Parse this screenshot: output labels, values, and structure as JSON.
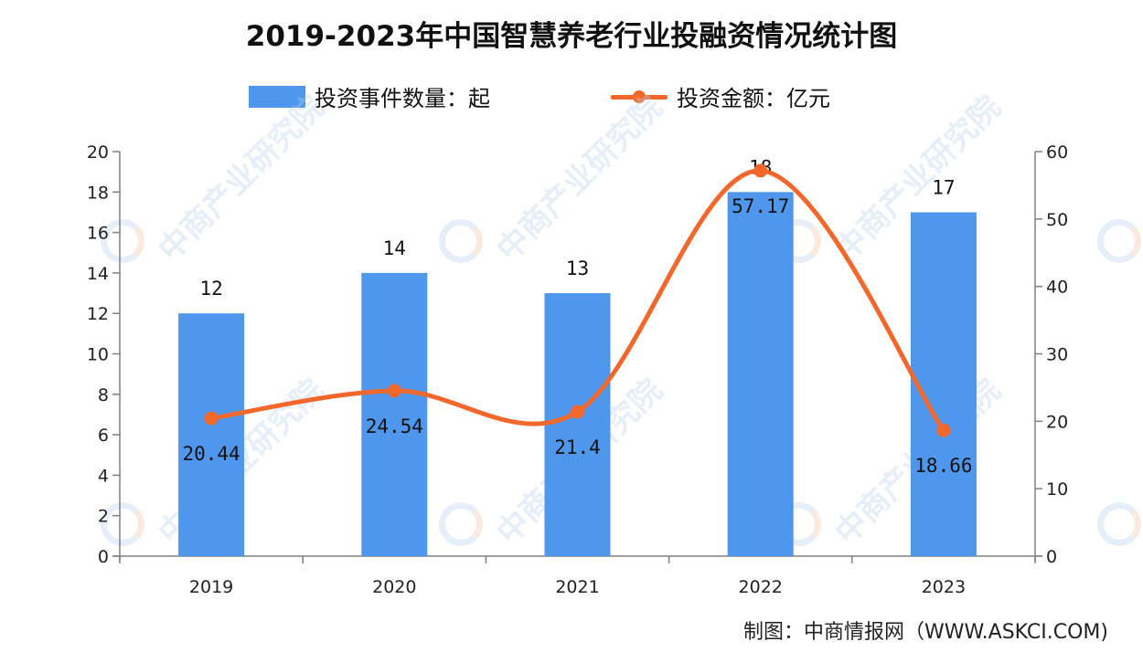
{
  "title": "2019-2023年中国智慧养老行业投融资情况统计图",
  "legend": {
    "bar_label": "投资事件数量：起",
    "line_label": "投资金额：亿元"
  },
  "source": "制图：中商情报网（WWW.ASKCI.COM)",
  "watermark_text": "中商产业研究院",
  "colors": {
    "bar": "#4e97ec",
    "line": "#f4672a",
    "axis": "#808080"
  },
  "chart_data": {
    "type": "bar+line",
    "title": "2019-2023年中国智慧养老行业投融资情况统计图",
    "categories": [
      "2019",
      "2020",
      "2021",
      "2022",
      "2023"
    ],
    "series": [
      {
        "name": "投资事件数量：起",
        "type": "bar",
        "axis": "left",
        "values": [
          12,
          14,
          13,
          18,
          17
        ]
      },
      {
        "name": "投资金额：亿元",
        "type": "line",
        "axis": "right",
        "smooth": true,
        "values": [
          20.44,
          24.54,
          21.4,
          57.17,
          18.66
        ]
      }
    ],
    "y_left": {
      "min": 0,
      "max": 20,
      "ticks": [
        0,
        2,
        4,
        6,
        8,
        10,
        12,
        14,
        16,
        18,
        20
      ]
    },
    "y_right": {
      "min": 0,
      "max": 60,
      "ticks": [
        0,
        10,
        20,
        30,
        40,
        50,
        60
      ]
    },
    "xlabel": "",
    "ylabel": "",
    "grid": false,
    "legend_position": "top"
  }
}
